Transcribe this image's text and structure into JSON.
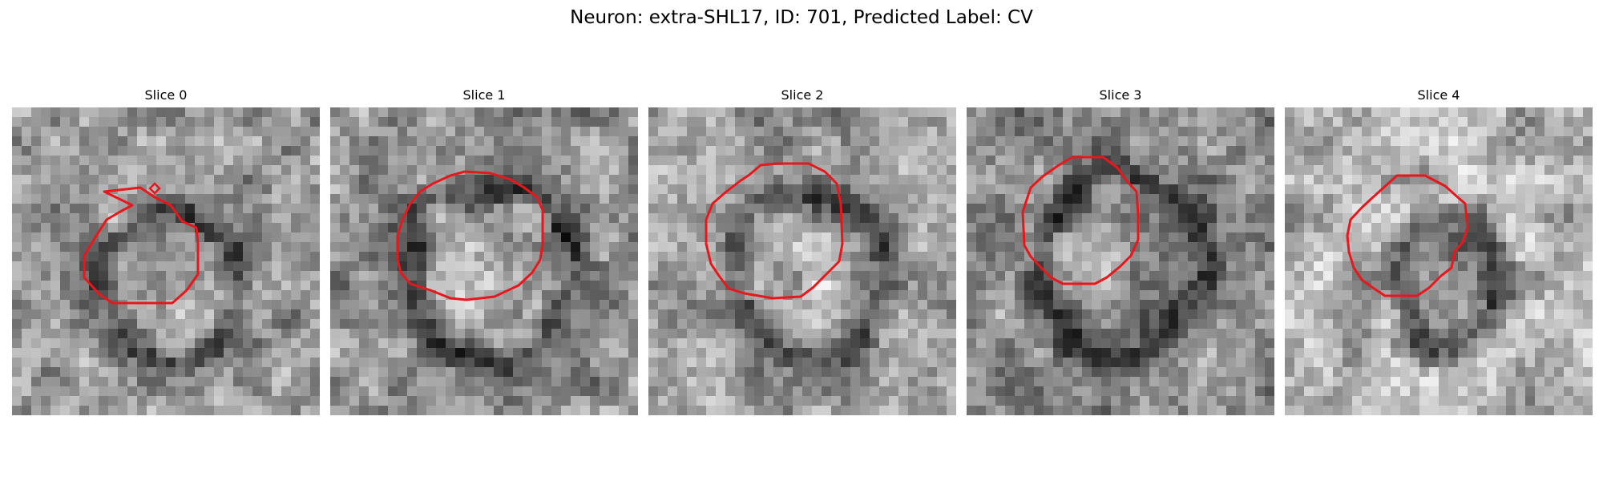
{
  "figure": {
    "title": "Neuron: extra-SHL17, ID: 701, Predicted Label: CV"
  },
  "colors": {
    "background": "#ffffff",
    "contour": "#e8171c",
    "text": "#000000"
  },
  "slices": [
    {
      "title": "Slice 0"
    },
    {
      "title": "Slice 1"
    },
    {
      "title": "Slice 2"
    },
    {
      "title": "Slice 3"
    },
    {
      "title": "Slice 4"
    }
  ]
}
